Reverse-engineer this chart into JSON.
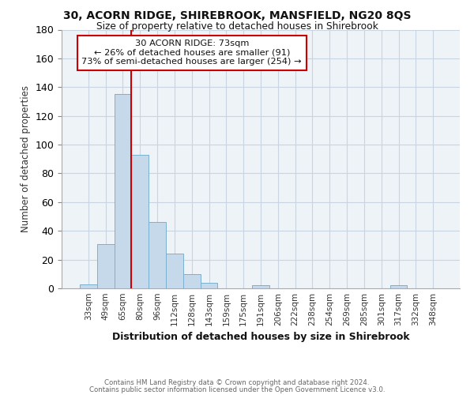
{
  "title1": "30, ACORN RIDGE, SHIREBROOK, MANSFIELD, NG20 8QS",
  "title2": "Size of property relative to detached houses in Shirebrook",
  "xlabel": "Distribution of detached houses by size in Shirebrook",
  "ylabel": "Number of detached properties",
  "bar_labels": [
    "33sqm",
    "49sqm",
    "65sqm",
    "80sqm",
    "96sqm",
    "112sqm",
    "128sqm",
    "143sqm",
    "159sqm",
    "175sqm",
    "191sqm",
    "206sqm",
    "222sqm",
    "238sqm",
    "254sqm",
    "269sqm",
    "285sqm",
    "301sqm",
    "317sqm",
    "332sqm",
    "348sqm"
  ],
  "bar_values": [
    3,
    31,
    135,
    93,
    46,
    24,
    10,
    4,
    0,
    0,
    2,
    0,
    0,
    0,
    0,
    0,
    0,
    0,
    2,
    0,
    0
  ],
  "bar_color": "#c6d9eb",
  "bar_edge_color": "#7ab0ce",
  "vline_color": "#cc0000",
  "vline_pos": 2.5,
  "annotation_title": "30 ACORN RIDGE: 73sqm",
  "annotation_line1": "← 26% of detached houses are smaller (91)",
  "annotation_line2": "73% of semi-detached houses are larger (254) →",
  "box_edge_color": "#cc0000",
  "ylim": [
    0,
    180
  ],
  "yticks": [
    0,
    20,
    40,
    60,
    80,
    100,
    120,
    140,
    160,
    180
  ],
  "footer1": "Contains HM Land Registry data © Crown copyright and database right 2024.",
  "footer2": "Contains public sector information licensed under the Open Government Licence v3.0."
}
